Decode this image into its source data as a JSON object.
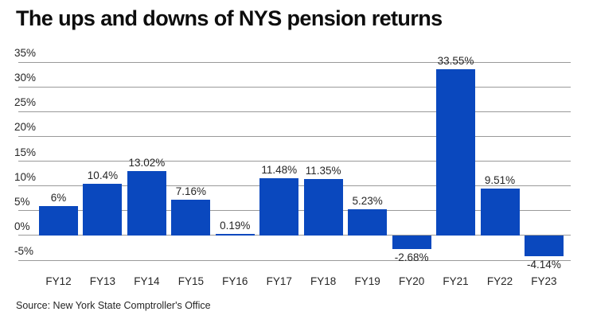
{
  "title": "The ups and downs of NYS pension returns",
  "source": "Source: New York State Comptroller's Office",
  "colors": {
    "bar": "#0a48be",
    "gridline": "#9a9a9a",
    "text": "#262626",
    "title": "#0d0d0d",
    "background": "#ffffff"
  },
  "chart_data": {
    "type": "bar",
    "title": "The ups and downs of NYS pension returns",
    "xlabel": "",
    "ylabel": "",
    "categories": [
      "FY12",
      "FY13",
      "FY14",
      "FY15",
      "FY16",
      "FY17",
      "FY18",
      "FY19",
      "FY20",
      "FY21",
      "FY22",
      "FY23"
    ],
    "values": [
      6,
      10.4,
      13.02,
      7.16,
      0.19,
      11.48,
      11.35,
      5.23,
      -2.68,
      33.55,
      9.51,
      -4.14
    ],
    "value_labels": [
      "6%",
      "10.4%",
      "13.02%",
      "7.16%",
      "0.19%",
      "11.48%",
      "11.35%",
      "5.23%",
      "-2.68%",
      "33.55%",
      "9.51%",
      "-4.14%"
    ],
    "y_ticks": [
      35,
      30,
      25,
      20,
      15,
      10,
      5,
      0,
      -5
    ],
    "y_tick_labels": [
      "35%",
      "30%",
      "25%",
      "20%",
      "15%",
      "10%",
      "5%",
      "0%",
      "-5%"
    ],
    "ylim": [
      -5,
      35
    ],
    "grid": "horizontal",
    "legend": "none",
    "source_note": "Source: New York State Comptroller's Office"
  }
}
